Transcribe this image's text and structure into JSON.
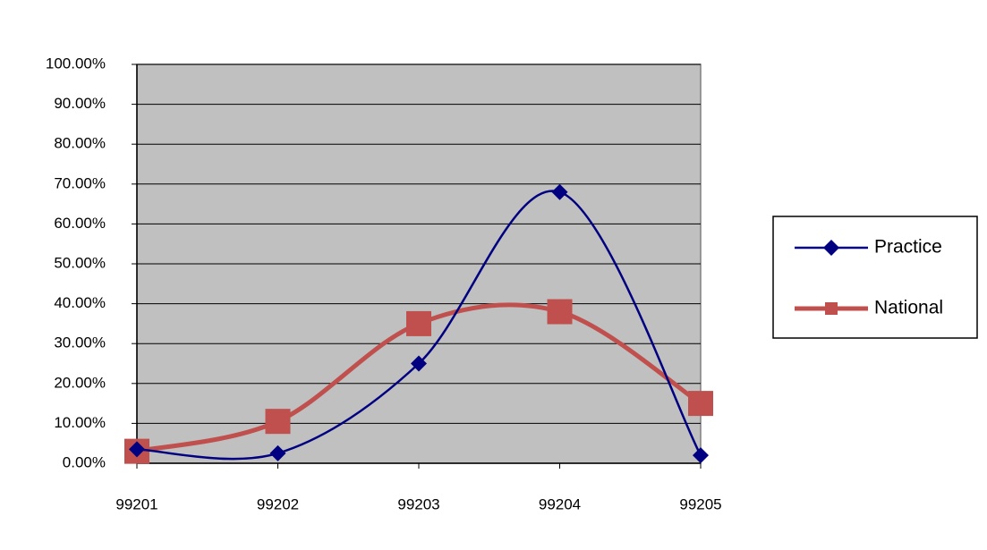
{
  "chart_data": {
    "type": "line",
    "categories": [
      "99201",
      "99202",
      "99203",
      "99204",
      "99205"
    ],
    "series": [
      {
        "name": "Practice",
        "color": "#000080",
        "marker": "diamond",
        "values": [
          3.5,
          2.5,
          25,
          68,
          2
        ]
      },
      {
        "name": "National",
        "color": "#c0504d",
        "marker": "square",
        "values": [
          3,
          10.5,
          35,
          38,
          15
        ]
      }
    ],
    "ylim": [
      0,
      100
    ],
    "yticks": [
      {
        "value": 0,
        "label": "0.00%"
      },
      {
        "value": 10,
        "label": "10.00%"
      },
      {
        "value": 20,
        "label": "20.00%"
      },
      {
        "value": 30,
        "label": "30.00%"
      },
      {
        "value": 40,
        "label": "40.00%"
      },
      {
        "value": 50,
        "label": "50.00%"
      },
      {
        "value": 60,
        "label": "60.00%"
      },
      {
        "value": 70,
        "label": "70.00%"
      },
      {
        "value": 80,
        "label": "80.00%"
      },
      {
        "value": 90,
        "label": "90.00%"
      },
      {
        "value": 100,
        "label": "100.00%"
      }
    ],
    "grid": true,
    "smooth": true,
    "plot_background": "#c0c0c0",
    "legend": "right"
  }
}
